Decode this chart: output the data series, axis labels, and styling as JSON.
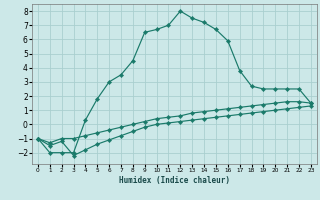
{
  "xlabel": "Humidex (Indice chaleur)",
  "background_color": "#cce8e8",
  "grid_color": "#aacfcf",
  "line_color": "#1a7a6a",
  "xlim": [
    -0.5,
    23.5
  ],
  "ylim": [
    -2.8,
    8.5
  ],
  "xticks": [
    0,
    1,
    2,
    3,
    4,
    5,
    6,
    7,
    8,
    9,
    10,
    11,
    12,
    13,
    14,
    15,
    16,
    17,
    18,
    19,
    20,
    21,
    22,
    23
  ],
  "yticks": [
    -2,
    -1,
    0,
    1,
    2,
    3,
    4,
    5,
    6,
    7,
    8
  ],
  "series": [
    {
      "x": [
        0,
        1,
        2,
        3,
        4,
        5,
        6,
        7,
        8,
        9,
        10,
        11,
        12,
        13,
        14,
        15,
        16,
        17,
        18,
        19,
        20,
        21,
        22,
        23
      ],
      "y": [
        -1,
        -2,
        -2,
        -2,
        0.3,
        1.8,
        3.0,
        3.5,
        4.5,
        6.5,
        6.7,
        7.0,
        8.0,
        7.5,
        7.2,
        6.7,
        5.9,
        3.8,
        2.7,
        2.5,
        2.5,
        2.5,
        2.5,
        1.5
      ]
    },
    {
      "x": [
        0,
        1,
        2,
        3,
        4,
        5,
        6,
        7,
        8,
        9,
        10,
        11,
        12,
        13,
        14,
        15,
        16,
        17,
        18,
        19,
        20,
        21,
        22,
        23
      ],
      "y": [
        -1,
        -1.3,
        -1.0,
        -1.0,
        -0.8,
        -0.6,
        -0.4,
        -0.2,
        0.0,
        0.2,
        0.4,
        0.5,
        0.6,
        0.8,
        0.9,
        1.0,
        1.1,
        1.2,
        1.3,
        1.4,
        1.5,
        1.6,
        1.6,
        1.5
      ]
    },
    {
      "x": [
        0,
        1,
        2,
        3,
        4,
        5,
        6,
        7,
        8,
        9,
        10,
        11,
        12,
        13,
        14,
        15,
        16,
        17,
        18,
        19,
        20,
        21,
        22,
        23
      ],
      "y": [
        -1,
        -1.5,
        -1.2,
        -2.2,
        -1.8,
        -1.4,
        -1.1,
        -0.8,
        -0.5,
        -0.2,
        0.0,
        0.1,
        0.2,
        0.3,
        0.4,
        0.5,
        0.6,
        0.7,
        0.8,
        0.9,
        1.0,
        1.1,
        1.2,
        1.3
      ]
    }
  ]
}
